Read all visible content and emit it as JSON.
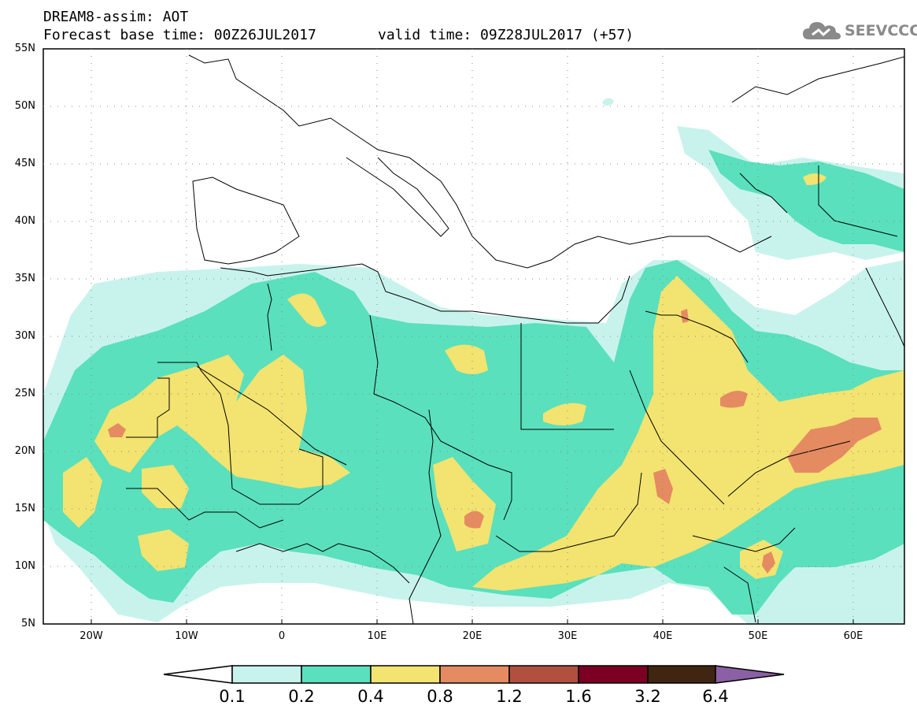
{
  "header": {
    "line1": "DREAM8-assim: AOT",
    "line2_base": "Forecast base time: 00Z26JUL2017",
    "line2_valid": "valid time: 09Z28JUL2017 (+57)",
    "logo_text": "SEEVCCC"
  },
  "map": {
    "lat_labels": [
      "55N",
      "50N",
      "45N",
      "40N",
      "35N",
      "30N",
      "25N",
      "20N",
      "15N",
      "10N",
      "5N"
    ],
    "lon_labels": [
      "20W",
      "10W",
      "0",
      "10E",
      "20E",
      "30E",
      "40E",
      "50E",
      "60E"
    ],
    "lat_range": [
      5,
      55
    ],
    "lon_range": [
      -25,
      65
    ]
  },
  "colorbar": {
    "levels": [
      "0.1",
      "0.2",
      "0.4",
      "0.8",
      "1.2",
      "1.6",
      "3.2",
      "6.4"
    ],
    "colors": [
      "#ffffff",
      "#c8f3ec",
      "#5ae0bc",
      "#f3e370",
      "#e58b62",
      "#b2503f",
      "#7c0024",
      "#3f2512",
      "#8b60a4"
    ]
  },
  "colors": {
    "c1": "#c8f3ec",
    "c2": "#5ae0bc",
    "c3": "#f3e370",
    "c4": "#e58b62",
    "c5": "#b2503f"
  }
}
